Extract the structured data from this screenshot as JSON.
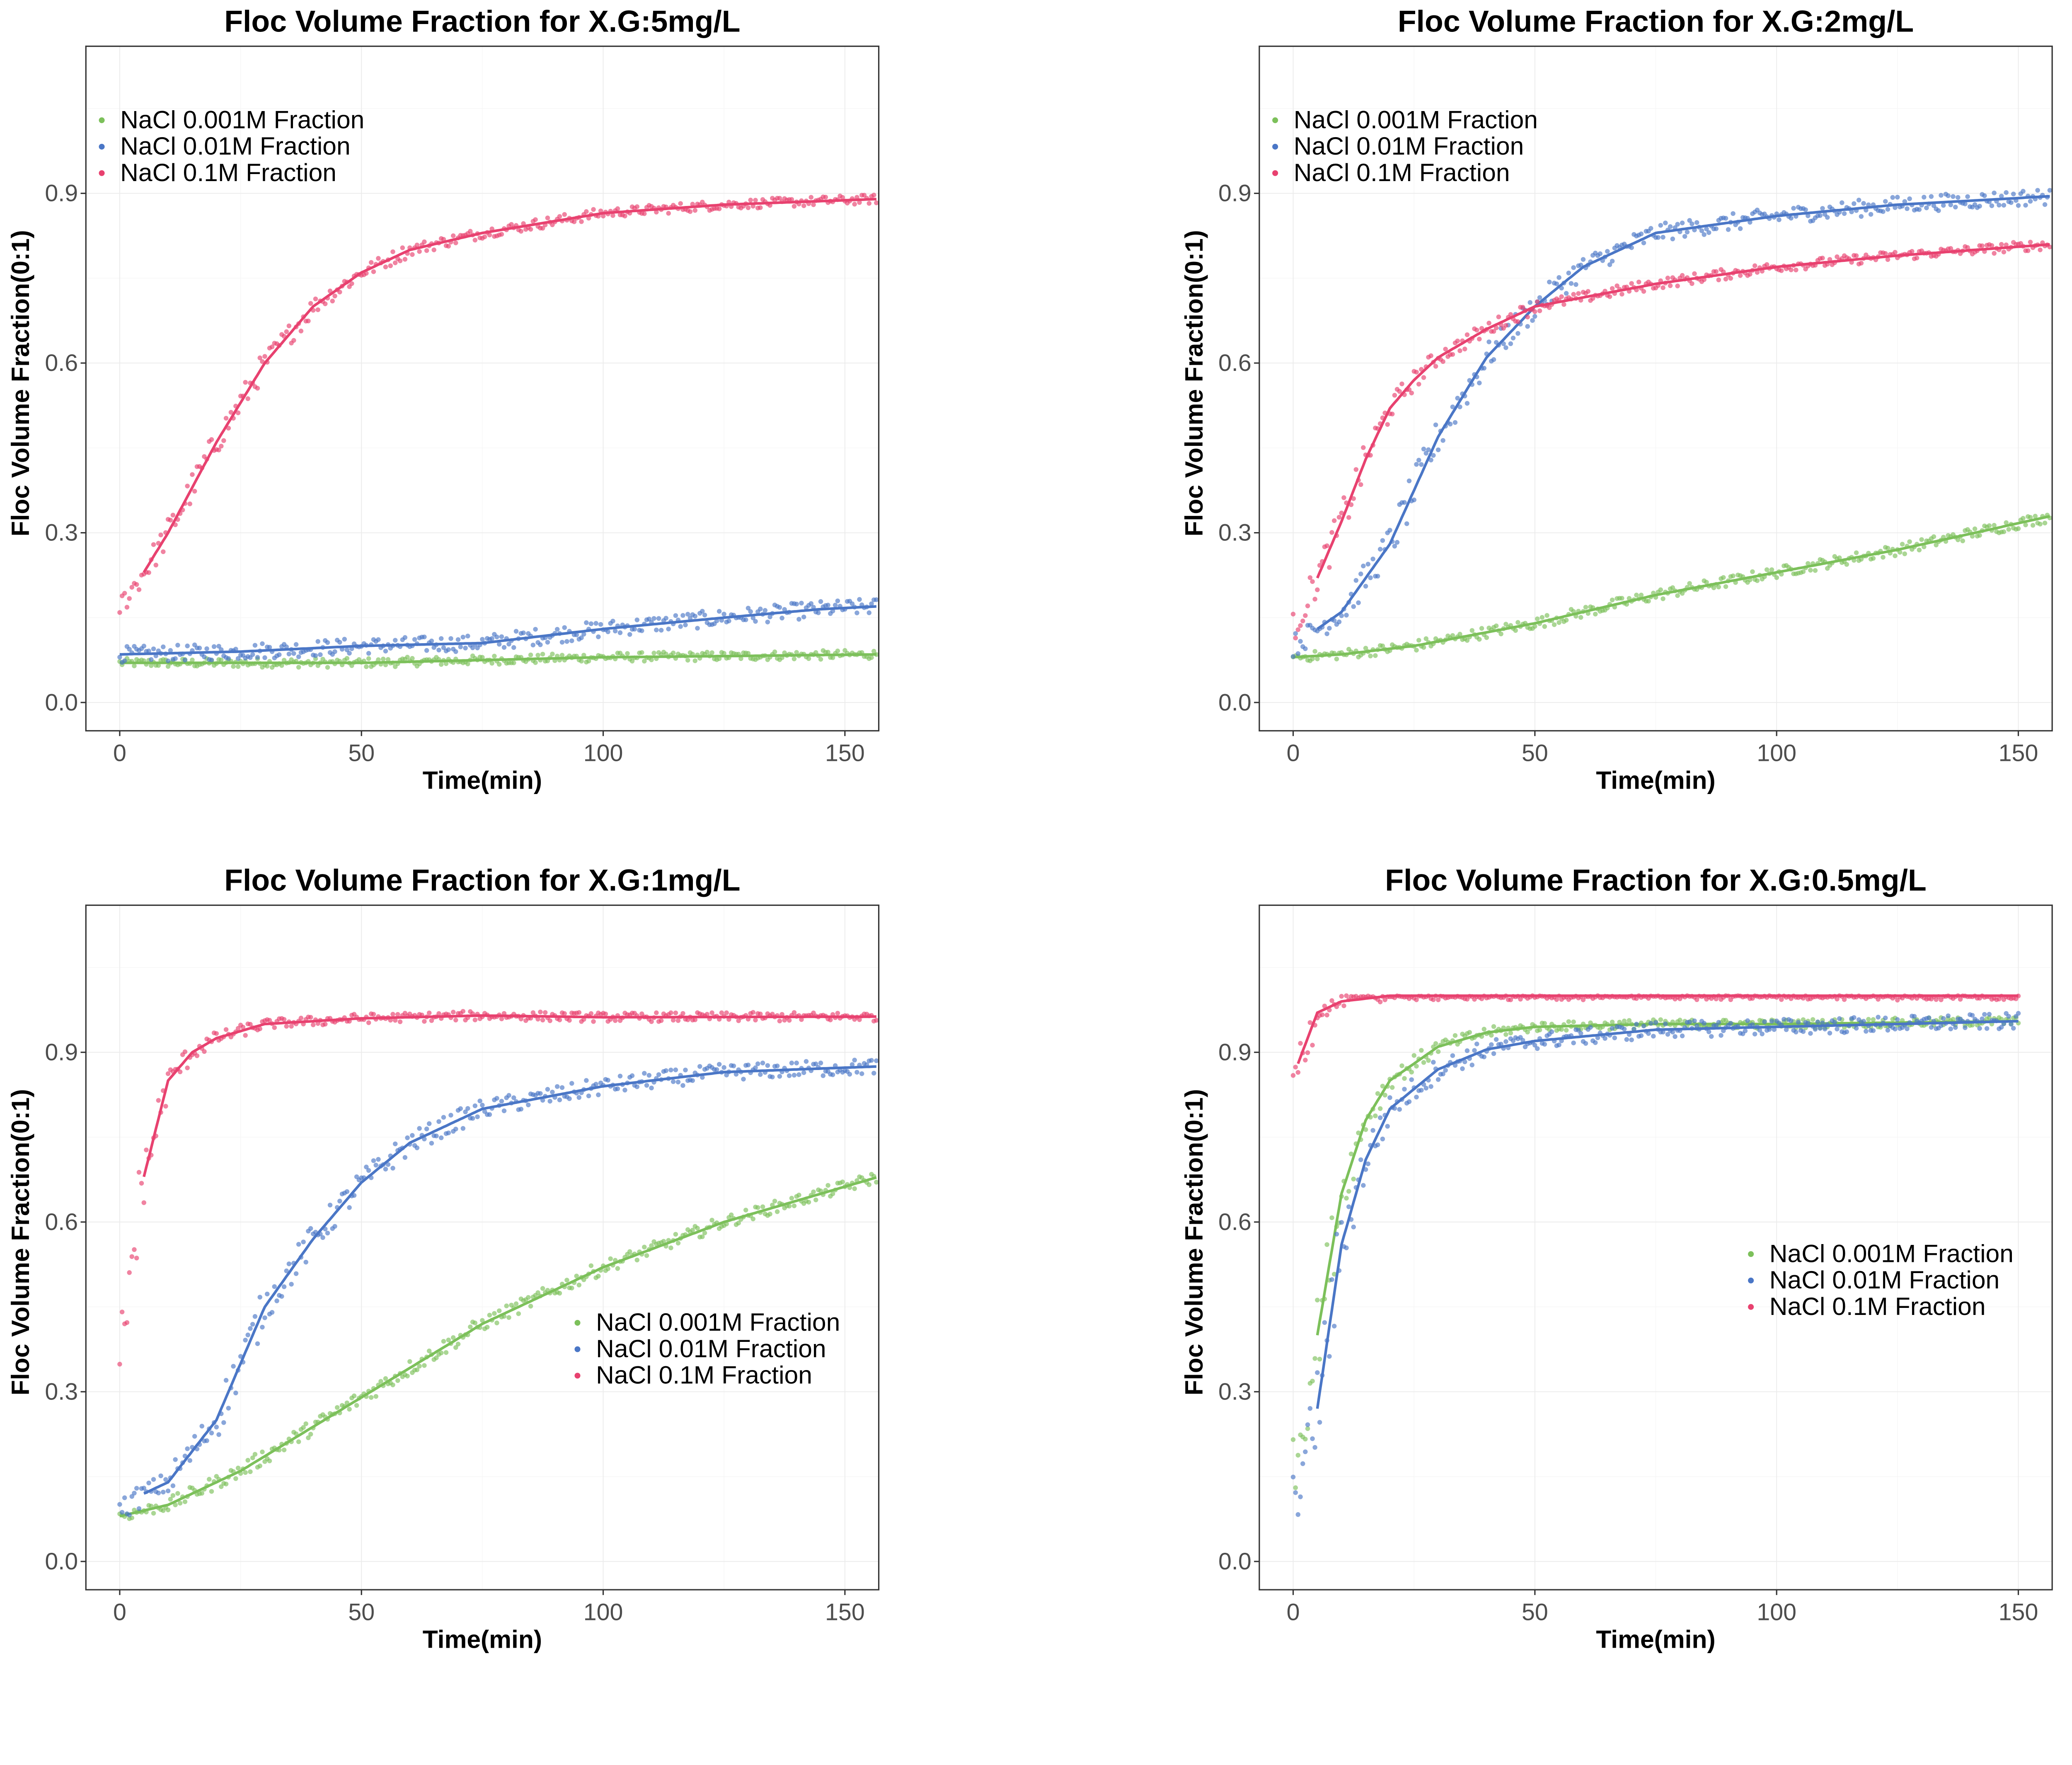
{
  "chart_data": [
    {
      "type": "scatter",
      "title": "Floc Volume Fraction for X.G:5mg/L",
      "xlabel": "Time(min)",
      "ylabel": "Floc Volume Fraction(0:1)",
      "xlim": [
        -7,
        157
      ],
      "ylim": [
        -0.05,
        1.16
      ],
      "xticks": [
        0,
        50,
        100,
        150
      ],
      "yticks": [
        0.0,
        0.3,
        0.6,
        0.9
      ],
      "ytick_labels": [
        "0.0",
        "0.3",
        "0.6",
        "0.9"
      ],
      "grid": true,
      "legend_position": "top-left",
      "series": [
        {
          "name": "NaCl 0.001M Fraction",
          "color": "#7cc05a",
          "smooth_t": [
            0,
            25,
            50,
            75,
            100,
            125,
            157
          ],
          "smooth_v": [
            0.07,
            0.07,
            0.07,
            0.075,
            0.08,
            0.082,
            0.085
          ],
          "start": 0
        },
        {
          "name": "NaCl 0.01M Fraction",
          "color": "#4a76c6",
          "smooth_t": [
            0,
            25,
            50,
            75,
            100,
            125,
            145,
            157
          ],
          "smooth_v": [
            0.085,
            0.09,
            0.1,
            0.105,
            0.13,
            0.15,
            0.165,
            0.17
          ],
          "start": 0
        },
        {
          "name": "NaCl 0.1M Fraction",
          "color": "#e8416f",
          "smooth_t": [
            0,
            5,
            10,
            15,
            20,
            25,
            30,
            40,
            50,
            60,
            75,
            100,
            125,
            157
          ],
          "smooth_v": [
            0.17,
            0.23,
            0.3,
            0.38,
            0.46,
            0.53,
            0.6,
            0.7,
            0.76,
            0.8,
            0.83,
            0.865,
            0.88,
            0.89
          ],
          "start": 5
        }
      ]
    },
    {
      "type": "scatter",
      "title": "Floc Volume Fraction for X.G:2mg/L",
      "xlabel": "Time(min)",
      "ylabel": "Floc Volume Fraction(0:1)",
      "xlim": [
        -7,
        157
      ],
      "ylim": [
        -0.05,
        1.16
      ],
      "xticks": [
        0,
        50,
        100,
        150
      ],
      "yticks": [
        0.0,
        0.3,
        0.6,
        0.9
      ],
      "ytick_labels": [
        "0.0",
        "0.3",
        "0.6",
        "0.9"
      ],
      "grid": true,
      "legend_position": "top-left",
      "series": [
        {
          "name": "NaCl 0.001M Fraction",
          "color": "#7cc05a",
          "smooth_t": [
            0,
            10,
            25,
            50,
            75,
            100,
            125,
            157
          ],
          "smooth_v": [
            0.08,
            0.085,
            0.1,
            0.14,
            0.19,
            0.23,
            0.27,
            0.33
          ],
          "start": 0
        },
        {
          "name": "NaCl 0.01M Fraction",
          "color": "#4a76c6",
          "smooth_t": [
            0,
            5,
            10,
            20,
            30,
            40,
            50,
            60,
            75,
            100,
            125,
            157
          ],
          "smooth_v": [
            0.1,
            0.13,
            0.16,
            0.28,
            0.47,
            0.61,
            0.7,
            0.77,
            0.83,
            0.86,
            0.88,
            0.895
          ],
          "start": 5
        },
        {
          "name": "NaCl 0.1M Fraction",
          "color": "#e8416f",
          "smooth_t": [
            0,
            5,
            10,
            15,
            20,
            25,
            30,
            40,
            50,
            75,
            100,
            125,
            157
          ],
          "smooth_v": [
            0.13,
            0.22,
            0.32,
            0.43,
            0.52,
            0.57,
            0.61,
            0.66,
            0.7,
            0.74,
            0.77,
            0.79,
            0.81
          ],
          "start": 5
        }
      ]
    },
    {
      "type": "scatter",
      "title": "Floc Volume Fraction for X.G:1mg/L",
      "xlabel": "Time(min)",
      "ylabel": "Floc Volume Fraction(0:1)",
      "xlim": [
        -7,
        157
      ],
      "ylim": [
        -0.05,
        1.16
      ],
      "xticks": [
        0,
        50,
        100,
        150
      ],
      "yticks": [
        0.0,
        0.3,
        0.6,
        0.9
      ],
      "ytick_labels": [
        "0.0",
        "0.3",
        "0.6",
        "0.9"
      ],
      "grid": true,
      "legend_position": "right",
      "series": [
        {
          "name": "NaCl 0.001M Fraction",
          "color": "#7cc05a",
          "smooth_t": [
            0,
            10,
            25,
            50,
            75,
            100,
            125,
            157
          ],
          "smooth_v": [
            0.08,
            0.1,
            0.16,
            0.29,
            0.42,
            0.52,
            0.6,
            0.68
          ],
          "start": 0
        },
        {
          "name": "NaCl 0.01M Fraction",
          "color": "#4a76c6",
          "smooth_t": [
            0,
            5,
            10,
            20,
            30,
            40,
            50,
            60,
            75,
            100,
            125,
            157
          ],
          "smooth_v": [
            0.09,
            0.12,
            0.14,
            0.25,
            0.45,
            0.57,
            0.67,
            0.74,
            0.8,
            0.84,
            0.865,
            0.875
          ],
          "start": 5
        },
        {
          "name": "NaCl 0.1M Fraction",
          "color": "#e8416f",
          "smooth_t": [
            0,
            2,
            5,
            10,
            15,
            20,
            30,
            50,
            75,
            100,
            157
          ],
          "smooth_v": [
            0.25,
            0.5,
            0.68,
            0.85,
            0.9,
            0.925,
            0.95,
            0.96,
            0.965,
            0.962,
            0.963
          ],
          "start": 5
        }
      ]
    },
    {
      "type": "scatter",
      "title": "Floc Volume Fraction for X.G:0.5mg/L",
      "xlabel": "Time(min)",
      "ylabel": "Floc Volume Fraction(0:1)",
      "xlim": [
        -7,
        157
      ],
      "ylim": [
        -0.05,
        1.16
      ],
      "xticks": [
        0,
        50,
        100,
        150
      ],
      "yticks": [
        0.0,
        0.3,
        0.6,
        0.9
      ],
      "ytick_labels": [
        "0.0",
        "0.3",
        "0.6",
        "0.9"
      ],
      "grid": true,
      "legend_position": "right",
      "series": [
        {
          "name": "NaCl 0.001M Fraction",
          "color": "#7cc05a",
          "smooth_t": [
            0,
            5,
            10,
            15,
            20,
            30,
            40,
            50,
            75,
            100,
            150
          ],
          "smooth_v": [
            0.15,
            0.4,
            0.65,
            0.78,
            0.85,
            0.91,
            0.935,
            0.945,
            0.95,
            0.95,
            0.955
          ],
          "start": 5
        },
        {
          "name": "NaCl 0.01M Fraction",
          "color": "#4a76c6",
          "smooth_t": [
            0,
            5,
            10,
            15,
            20,
            30,
            40,
            50,
            75,
            100,
            150
          ],
          "smooth_v": [
            0.1,
            0.27,
            0.56,
            0.71,
            0.8,
            0.87,
            0.905,
            0.92,
            0.94,
            0.945,
            0.955
          ],
          "start": 5
        },
        {
          "name": "NaCl 0.1M Fraction",
          "color": "#e8416f",
          "smooth_t": [
            0,
            1,
            5,
            10,
            20,
            50,
            100,
            150
          ],
          "smooth_v": [
            0.86,
            0.88,
            0.97,
            0.99,
            1.0,
            1.0,
            1.0,
            1.0
          ],
          "start": 1
        }
      ]
    }
  ]
}
